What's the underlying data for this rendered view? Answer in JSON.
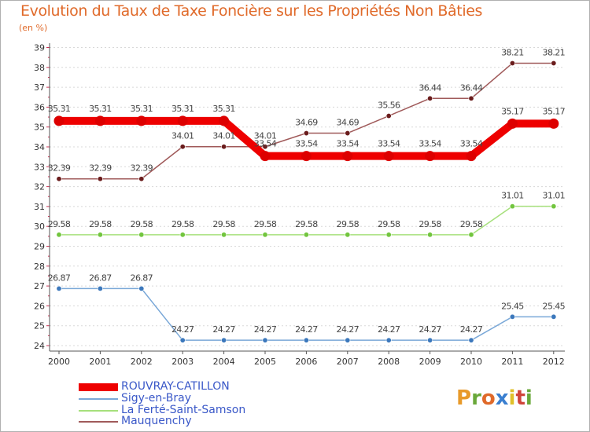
{
  "title": "Evolution du Taux de Taxe Foncière sur les Propriétés Non Bâties",
  "unit_label": "(en %)",
  "logo": {
    "letters": [
      "P",
      "r",
      "o",
      "x",
      "i",
      "t",
      "i"
    ],
    "colors": [
      "#e89a2a",
      "#6aa83a",
      "#e06a2a",
      "#3a7fd0",
      "#e0c02a",
      "#d0443a",
      "#6aa83a"
    ]
  },
  "chart_data": {
    "type": "line",
    "title": "Evolution du Taux de Taxe Foncière sur les Propriétés Non Bâties",
    "ylabel": "(en %)",
    "ylim": [
      24,
      39
    ],
    "yticks": [
      24,
      25,
      26,
      27,
      28,
      29,
      30,
      31,
      32,
      33,
      34,
      35,
      36,
      37,
      38,
      39
    ],
    "categories": [
      "2000",
      "2001",
      "2002",
      "2003",
      "2004",
      "2005",
      "2006",
      "2007",
      "2008",
      "2009",
      "2010",
      "2011",
      "2012"
    ],
    "series": [
      {
        "name": "ROUVRAY-CATILLON",
        "color": "#ee0000",
        "point_color": "#dd0000",
        "emphasis": true,
        "values": [
          35.31,
          35.31,
          35.31,
          35.31,
          35.31,
          33.54,
          33.54,
          33.54,
          33.54,
          33.54,
          33.54,
          35.17,
          35.17
        ],
        "labels": [
          "35.31",
          "35.31",
          "35.31",
          "35.31",
          "35.31",
          "33.54",
          "33.54",
          "33.54",
          "33.54",
          "33.54",
          "33.54",
          "35.17",
          "35.17"
        ]
      },
      {
        "name": "Sigy-en-Bray",
        "color": "#7aa8d8",
        "point_color": "#3c78bc",
        "emphasis": false,
        "values": [
          26.87,
          26.87,
          26.87,
          24.27,
          24.27,
          24.27,
          24.27,
          24.27,
          24.27,
          24.27,
          24.27,
          25.45,
          25.45
        ],
        "labels": [
          "26.87",
          "26.87",
          "26.87",
          "24.27",
          "24.27",
          "24.27",
          "24.27",
          "24.27",
          "24.27",
          "24.27",
          "24.27",
          "25.45",
          "25.45"
        ]
      },
      {
        "name": "La Ferté-Saint-Samson",
        "color": "#a6e07c",
        "point_color": "#72c53e",
        "emphasis": false,
        "values": [
          29.58,
          29.58,
          29.58,
          29.58,
          29.58,
          29.58,
          29.58,
          29.58,
          29.58,
          29.58,
          29.58,
          31.01,
          31.01
        ],
        "labels": [
          "29.58",
          "29.58",
          "29.58",
          "29.58",
          "29.58",
          "29.58",
          "29.58",
          "29.58",
          "29.58",
          "29.58",
          "29.58",
          "31.01",
          "31.01"
        ]
      },
      {
        "name": "Mauquenchy",
        "color": "#a05a5a",
        "point_color": "#6a1c1c",
        "emphasis": false,
        "values": [
          32.39,
          32.39,
          32.39,
          34.01,
          34.01,
          34.01,
          34.69,
          34.69,
          35.56,
          36.44,
          36.44,
          38.21,
          38.21
        ],
        "labels": [
          "32.39",
          "32.39",
          "32.39",
          "34.01",
          "34.01",
          "34.01",
          "34.69",
          "34.69",
          "35.56",
          "36.44",
          "36.44",
          "38.21",
          "38.21"
        ]
      }
    ]
  }
}
